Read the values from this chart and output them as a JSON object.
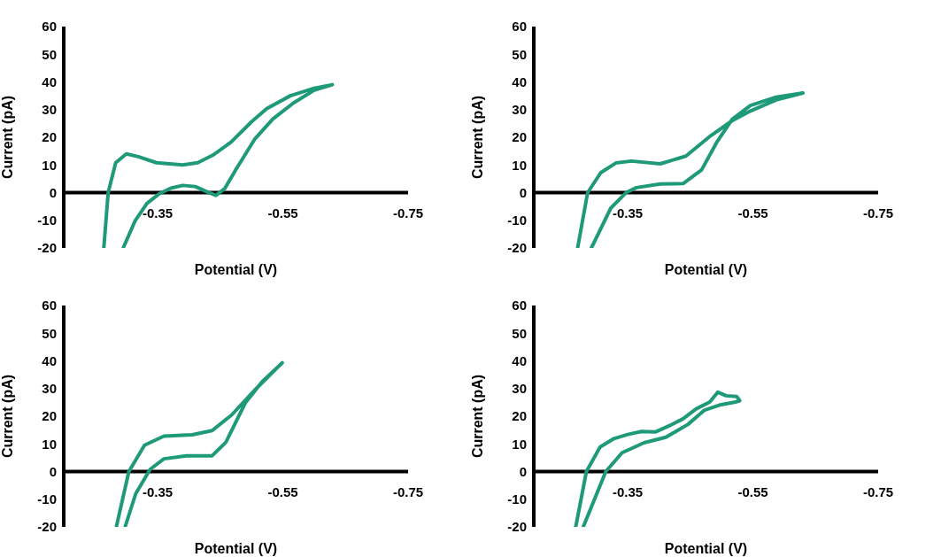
{
  "chart_data": [
    {
      "type": "line",
      "xlabel": "Potential (V)",
      "ylabel": "Current (pA)",
      "xlim": [
        -0.2,
        -0.75
      ],
      "xticks": [
        -0.35,
        -0.55,
        -0.75
      ],
      "ylim": [
        -20,
        60
      ],
      "yticks": [
        -20,
        -10,
        0,
        10,
        20,
        30,
        40,
        50,
        60
      ],
      "marker": "none",
      "series": [
        {
          "color": "#1f9a78",
          "x": [
            -0.264,
            -0.271,
            -0.283,
            -0.3,
            -0.319,
            -0.348,
            -0.39,
            -0.414,
            -0.438,
            -0.467,
            -0.5,
            -0.524,
            -0.562,
            -0.6,
            -0.629,
            -0.6,
            -0.567,
            -0.534,
            -0.505,
            -0.476,
            -0.457,
            -0.443,
            -0.429,
            -0.41,
            -0.39,
            -0.371,
            -0.352,
            -0.333,
            -0.314,
            -0.295
          ],
          "values": [
            -20,
            0,
            10.8,
            14,
            13,
            10.8,
            10,
            10.8,
            13.5,
            18.2,
            25.6,
            30.3,
            35,
            37.7,
            39,
            37,
            32.4,
            26.6,
            19.3,
            8.7,
            1.4,
            -1,
            0.3,
            2.2,
            2.6,
            1.6,
            -0.5,
            -3.9,
            -10.2,
            -20
          ]
        }
      ]
    },
    {
      "type": "line",
      "xlabel": "Potential (V)",
      "ylabel": "Current (pA)",
      "xlim": [
        -0.2,
        -0.75
      ],
      "xticks": [
        -0.35,
        -0.55,
        -0.75
      ],
      "ylim": [
        -20,
        60
      ],
      "yticks": [
        -20,
        -10,
        0,
        10,
        20,
        30,
        40,
        50,
        60
      ],
      "marker": "none",
      "series": [
        {
          "color": "#1f9a78",
          "x": [
            -0.27,
            -0.286,
            -0.307,
            -0.331,
            -0.356,
            -0.402,
            -0.443,
            -0.48,
            -0.517,
            -0.546,
            -0.587,
            -0.63,
            -0.587,
            -0.546,
            -0.517,
            -0.492,
            -0.468,
            -0.439,
            -0.402,
            -0.364,
            -0.348,
            -0.323,
            -0.292
          ],
          "values": [
            -20,
            0,
            7.2,
            10.7,
            11.4,
            10.4,
            13.2,
            20.1,
            26,
            29.5,
            33.5,
            36,
            34.5,
            31.5,
            26.5,
            18.1,
            8.2,
            3.3,
            3.1,
            1.8,
            0.1,
            -5.6,
            -20
          ]
        }
      ]
    },
    {
      "type": "line",
      "xlabel": "Potential (V)",
      "ylabel": "Current (pA)",
      "xlim": [
        -0.2,
        -0.75
      ],
      "xticks": [
        -0.35,
        -0.55,
        -0.75
      ],
      "ylim": [
        -20,
        60
      ],
      "yticks": [
        -20,
        -10,
        0,
        10,
        20,
        30,
        40,
        50,
        60
      ],
      "marker": "none",
      "series": [
        {
          "color": "#1f9a78",
          "x": [
            -0.284,
            -0.304,
            -0.329,
            -0.36,
            -0.405,
            -0.437,
            -0.468,
            -0.504,
            -0.549,
            -0.517,
            -0.49,
            -0.459,
            -0.437,
            -0.396,
            -0.36,
            -0.338,
            -0.315,
            -0.298
          ],
          "values": [
            -20,
            0,
            9.5,
            12.8,
            13.3,
            14.8,
            20.4,
            29.2,
            39.3,
            32.5,
            24.8,
            10.6,
            5.7,
            5.7,
            4.6,
            0.8,
            -8,
            -20
          ]
        }
      ]
    },
    {
      "type": "line",
      "xlabel": "Potential (V)",
      "ylabel": "Current (pA)",
      "xlim": [
        -0.2,
        -0.75
      ],
      "xticks": [
        -0.35,
        -0.55,
        -0.75
      ],
      "ylim": [
        -20,
        60
      ],
      "yticks": [
        -20,
        -10,
        0,
        10,
        20,
        30,
        40,
        50,
        60
      ],
      "marker": "none",
      "series": [
        {
          "color": "#1f9a78",
          "x": [
            -0.267,
            -0.284,
            -0.306,
            -0.328,
            -0.35,
            -0.372,
            -0.394,
            -0.416,
            -0.438,
            -0.459,
            -0.481,
            -0.494,
            -0.507,
            -0.524,
            -0.529,
            -0.522,
            -0.498,
            -0.472,
            -0.446,
            -0.411,
            -0.376,
            -0.341,
            -0.315,
            -0.279
          ],
          "values": [
            -20,
            0,
            8.9,
            11.9,
            13.4,
            14.5,
            14.3,
            16.5,
            19,
            22.6,
            25.1,
            28.7,
            27.4,
            27.1,
            25.6,
            25.1,
            24.1,
            22.1,
            17,
            12.4,
            10.4,
            6.8,
            0,
            -20
          ]
        }
      ]
    }
  ]
}
